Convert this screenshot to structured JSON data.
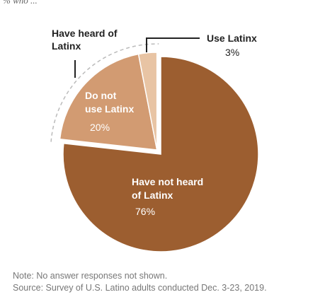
{
  "caption": "% who ...",
  "colors": {
    "not_heard": "#9c5e30",
    "do_not_use": "#d29b72",
    "use": "#e8c4a4",
    "label_dark": "#222222",
    "label_light": "#ffffff",
    "leader": "#222222",
    "dashed": "#bbbbbb"
  },
  "group_label": "Have heard of Latinx",
  "chart_data": {
    "type": "pie",
    "slices": [
      {
        "key": "not_heard",
        "label": "Have not heard of Latinx",
        "value": 76,
        "value_label": "76%"
      },
      {
        "key": "do_not_use",
        "label": "Do not use Latinx",
        "value": 20,
        "value_label": "20%"
      },
      {
        "key": "use",
        "label": "Use Latinx",
        "value": 3,
        "value_label": "3%"
      }
    ],
    "group": {
      "label": "Have heard of Latinx",
      "slices": [
        "do_not_use",
        "use"
      ]
    }
  },
  "notes": {
    "note": "Note: No answer responses not shown.",
    "source": "Source: Survey of U.S. Latino adults conducted Dec. 3-23, 2019."
  }
}
